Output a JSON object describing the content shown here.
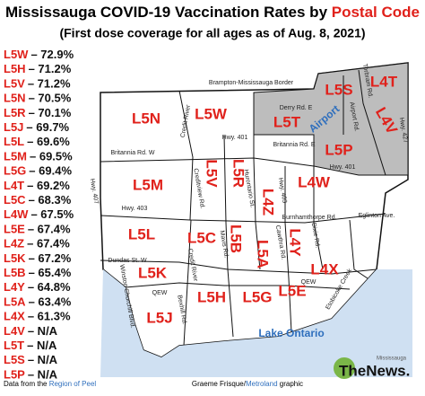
{
  "title": {
    "main": "Mississauga COVID-19 Vaccination Rates by ",
    "highlight": "Postal Code"
  },
  "subtitle": "(First dose coverage for all ages as of Aug. 8, 2021)",
  "rates": [
    {
      "code": "L5W",
      "rate": "– 72.9%"
    },
    {
      "code": "L5H",
      "rate": "– 71.2%"
    },
    {
      "code": "L5V",
      "rate": "– 71.2%"
    },
    {
      "code": "L5N",
      "rate": "– 70.5%"
    },
    {
      "code": "L5R",
      "rate": "– 70.1%"
    },
    {
      "code": "L5J",
      "rate": "– 69.7%"
    },
    {
      "code": "L5L",
      "rate": "– 69.6%"
    },
    {
      "code": "L5M",
      "rate": "– 69.5%"
    },
    {
      "code": "L5G",
      "rate": "– 69.4%"
    },
    {
      "code": "L4T",
      "rate": "– 69.2%"
    },
    {
      "code": "L5C",
      "rate": "– 68.3%"
    },
    {
      "code": "L4W",
      "rate": "– 67.5%"
    },
    {
      "code": "L5E",
      "rate": "– 67.4%"
    },
    {
      "code": "L4Z",
      "rate": "– 67.4%"
    },
    {
      "code": "L5K",
      "rate": "– 67.2%"
    },
    {
      "code": "L5B",
      "rate": "– 65.4%"
    },
    {
      "code": "L4Y",
      "rate": "– 64.8%"
    },
    {
      "code": "L5A",
      "rate": "– 63.4%"
    },
    {
      "code": "L4X",
      "rate": "– 61.3%"
    },
    {
      "code": "L4V",
      "rate": "– N/A"
    },
    {
      "code": "L5T",
      "rate": "– N/A"
    },
    {
      "code": "L5S",
      "rate": "– N/A"
    },
    {
      "code": "L5P",
      "rate": "– N/A"
    }
  ],
  "map_labels": [
    "L5N",
    "L5W",
    "L5S",
    "L4T",
    "L4V",
    "L5T",
    "L5P",
    "L5V",
    "L5R",
    "L4Z",
    "L4W",
    "L5M",
    "L5L",
    "L5C",
    "L5B",
    "L5A",
    "L4Y",
    "L4X",
    "L5K",
    "L5H",
    "L5G",
    "L5E",
    "L5J"
  ],
  "roads": [
    "Brampton-Mississauga Border",
    "Torbram Rd.",
    "Derry Rd. E",
    "Airport Rd.",
    "Hwy. 427",
    "Credit River",
    "Hwy. 401",
    "Britannia Rd. E",
    "Britannia Rd. W",
    "Hwy. 401",
    "Hwy. 407",
    "Creditview Rd.",
    "Hurontario St.",
    "Hwy. 403",
    "Eglinton Ave.",
    "Hwy. 403",
    "Burnhamthorpe Rd.",
    "Mavis Rd.",
    "Dixie Rd.",
    "Cawthra Rd.",
    "Dundas St. W",
    "Credit River",
    "Etobicoke Creek",
    "QEW",
    "QEW",
    "Winston Churchill Blvd.",
    "Bexhill Rd."
  ],
  "airport": "Airport",
  "lake": "Lake Ontario",
  "footer": {
    "data_prefix": "Data from the ",
    "data_source": "Region of Peel",
    "credit_name": "Graeme Frisque/",
    "credit_org": "Metroland",
    "credit_suffix": " graphic",
    "logo_top": "Mississauga",
    "logo_main": "TheNews."
  }
}
